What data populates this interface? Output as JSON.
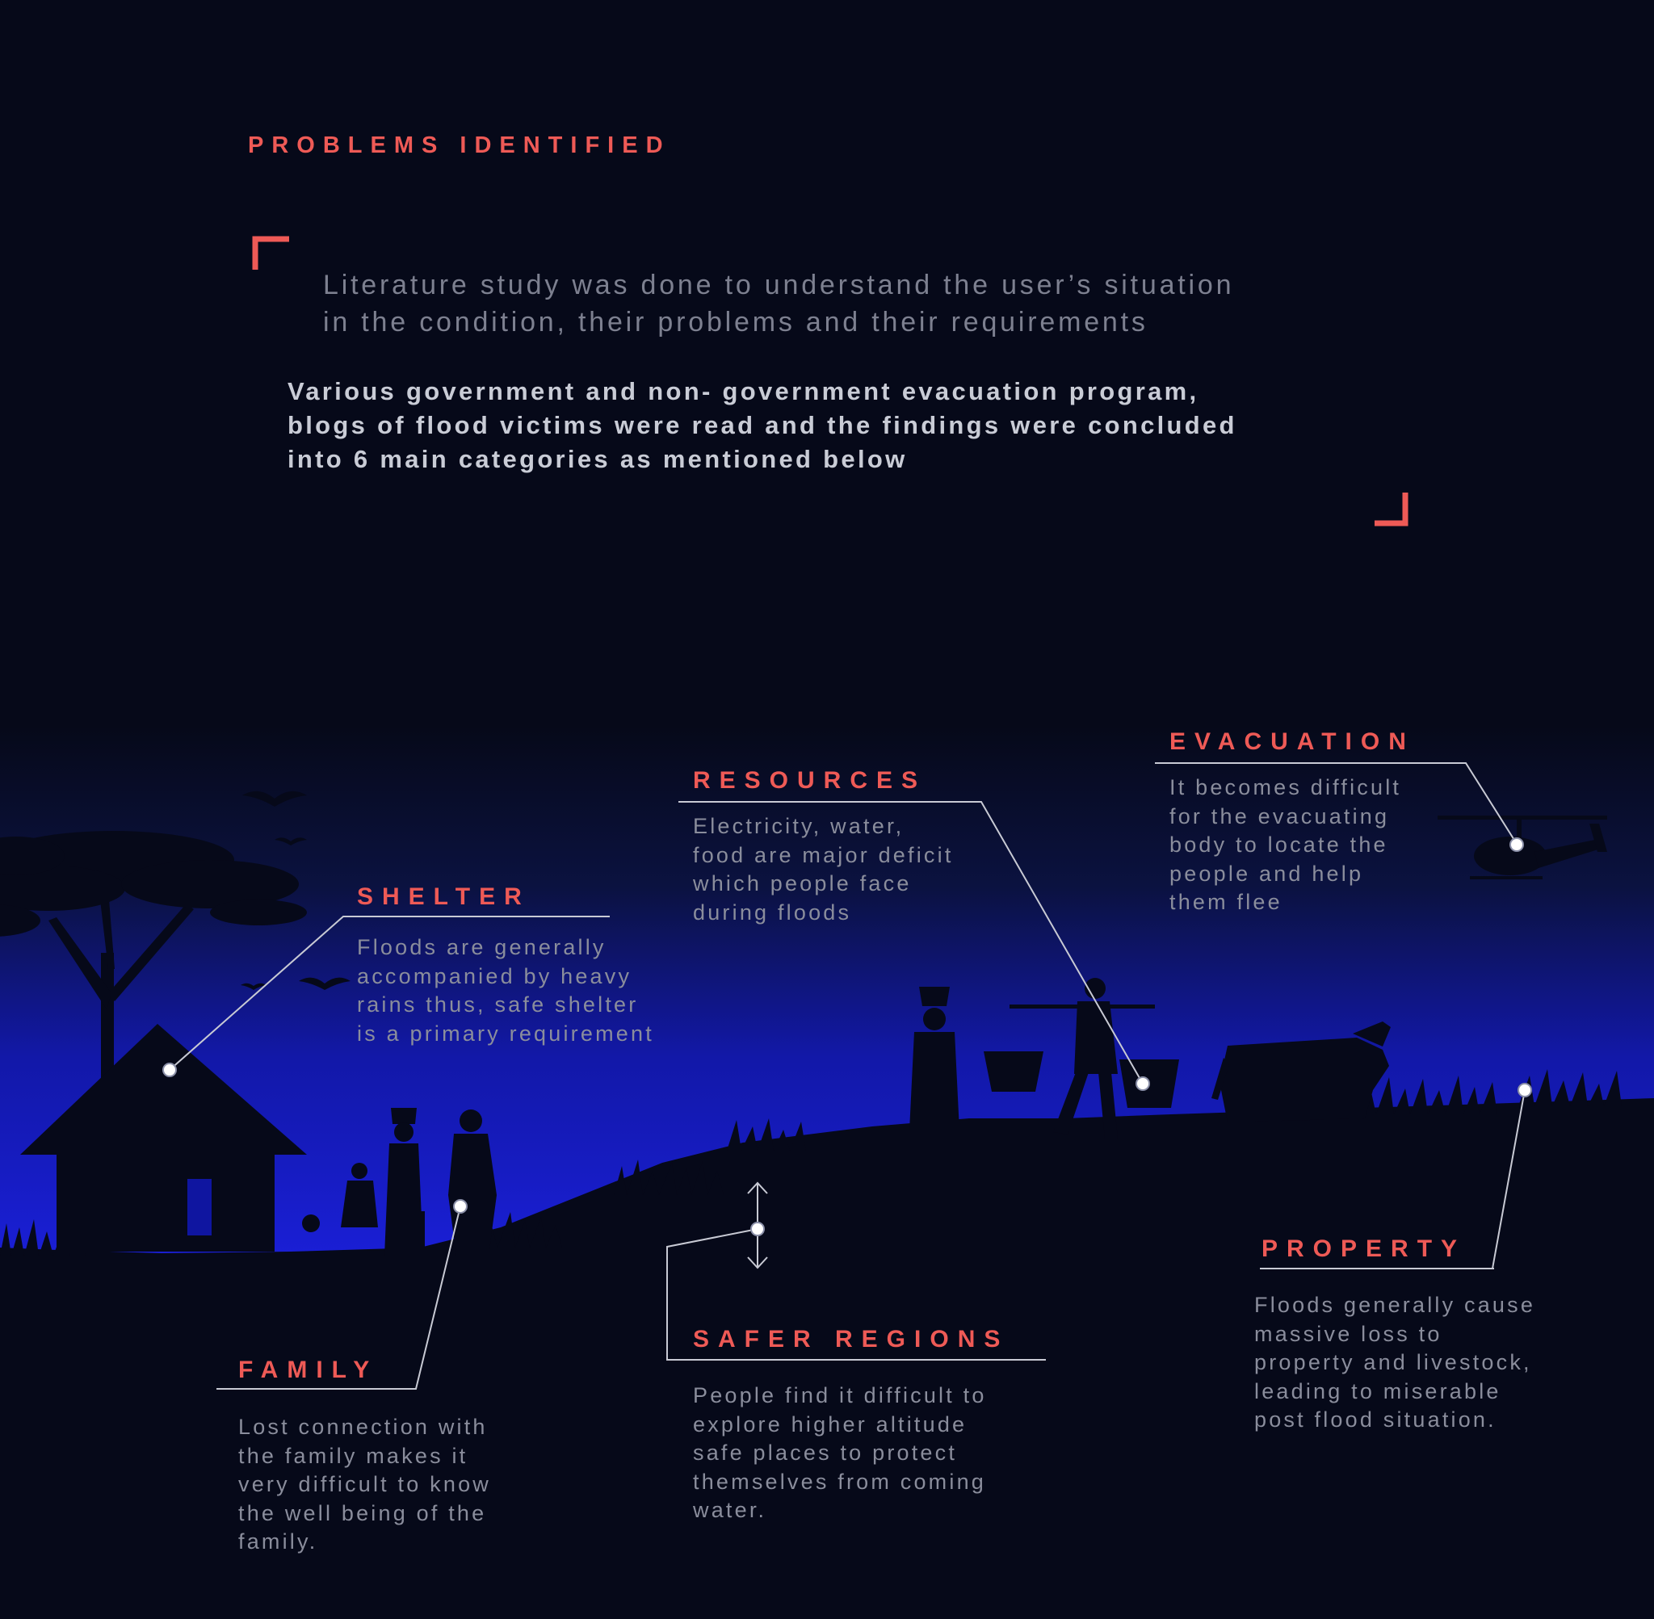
{
  "header": {
    "title": "PROBLEMS IDENTIFIED",
    "intro_lines": [
      "Literature study was done to understand the user’s situation",
      "in the condition, their problems and their requirements"
    ],
    "summary_lines": [
      "Various  government and non- government evacuation program,",
      "blogs of flood victims were read and the findings were concluded",
      "into 6 main categories as mentioned below"
    ]
  },
  "categories": {
    "shelter": {
      "title": "SHELTER",
      "lines": [
        "Floods are generally",
        "accompanied by heavy",
        "rains thus, safe shelter",
        "is a primary requirement"
      ]
    },
    "resources": {
      "title": "RESOURCES",
      "lines": [
        "Electricity, water,",
        "food are major deficit",
        "which people face",
        "during floods"
      ]
    },
    "evacuation": {
      "title": "EVACUATION",
      "lines": [
        "It becomes difficult",
        "for the evacuating",
        "body to locate the",
        "people and help",
        "them flee"
      ]
    },
    "family": {
      "title": "FAMILY",
      "lines": [
        "Lost connection with",
        "the family makes it",
        "very difficult to know",
        "the well being of the",
        "family."
      ]
    },
    "safer_regions": {
      "title": "SAFER REGIONS",
      "lines": [
        "People find it difficult to",
        "explore higher altitude",
        "safe places to protect",
        "themselves from coming",
        "water."
      ]
    },
    "property": {
      "title": "PROPERTY",
      "lines": [
        "Floods generally cause",
        "massive loss to",
        "property and livestock,",
        "leading to miserable",
        "post flood situation."
      ]
    }
  },
  "colors": {
    "background": "#060919",
    "accent": "#ee5a56",
    "sky_glow": "#1a1fd6",
    "silhouette": "#060919",
    "leader_line": "#c8cad4"
  }
}
